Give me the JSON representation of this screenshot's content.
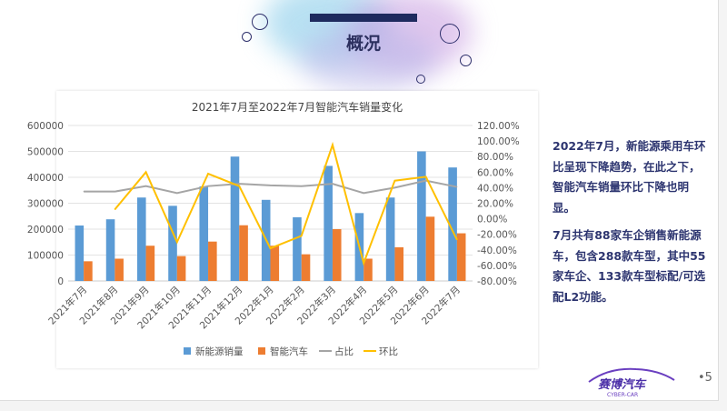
{
  "slide": {
    "title": "概况",
    "page_number": "•5",
    "logo_text": "赛博汽车",
    "logo_sub": "CYBER-CAR"
  },
  "side_text": {
    "paragraphs": [
      "2022年7月，新能源乘用车环比呈现下降趋势，在此之下，智能汽车销量环比下降也明显。",
      "7月共有88家车企销售新能源车，包含288款车型，其中55家车企、133款车型标配/可选配L2功能。"
    ]
  },
  "chart_data": {
    "type": "bar",
    "title": "2021年7月至2022年7月智能汽车销量变化",
    "categories": [
      "2021年7月",
      "2021年8月",
      "2021年9月",
      "2021年10月",
      "2021年11月",
      "2021年12月",
      "2022年1月",
      "2022年2月",
      "2022年3月",
      "2022年4月",
      "2022年5月",
      "2022年6月",
      "2022年7月"
    ],
    "ylim": [
      0,
      600000
    ],
    "yticks": [
      "0",
      "100000",
      "200000",
      "300000",
      "400000",
      "500000",
      "600000"
    ],
    "y2lim": [
      -80,
      120
    ],
    "y2ticks": [
      "-80.00%",
      "-60.00%",
      "-40.00%",
      "-20.00%",
      "0.00%",
      "20.00%",
      "40.00%",
      "60.00%",
      "80.00%",
      "100.00%",
      "120.00%"
    ],
    "series": [
      {
        "name": "新能源销量",
        "type": "bar",
        "axis": "left",
        "color": "#5b9bd5",
        "values": [
          214000,
          238000,
          322000,
          290000,
          365000,
          480000,
          313000,
          246000,
          444000,
          262000,
          322000,
          500000,
          438000
        ]
      },
      {
        "name": "智能汽车",
        "type": "bar",
        "axis": "left",
        "color": "#ed7d31",
        "values": [
          76000,
          86000,
          136000,
          96000,
          152000,
          215000,
          136000,
          103000,
          200000,
          86000,
          130000,
          248000,
          184000
        ]
      },
      {
        "name": "占比",
        "type": "line",
        "axis": "right",
        "color": "#a5a5a5",
        "values": [
          35,
          35,
          42,
          33,
          42,
          45,
          43,
          42,
          45,
          33,
          40,
          49,
          41
        ]
      },
      {
        "name": "环比",
        "type": "line",
        "axis": "right",
        "color": "#ffc000",
        "values": [
          null,
          12,
          60,
          -30,
          58,
          42,
          -38,
          -22,
          95,
          -57,
          49,
          54,
          -27
        ]
      }
    ],
    "legend": "bottom",
    "grid": true
  }
}
